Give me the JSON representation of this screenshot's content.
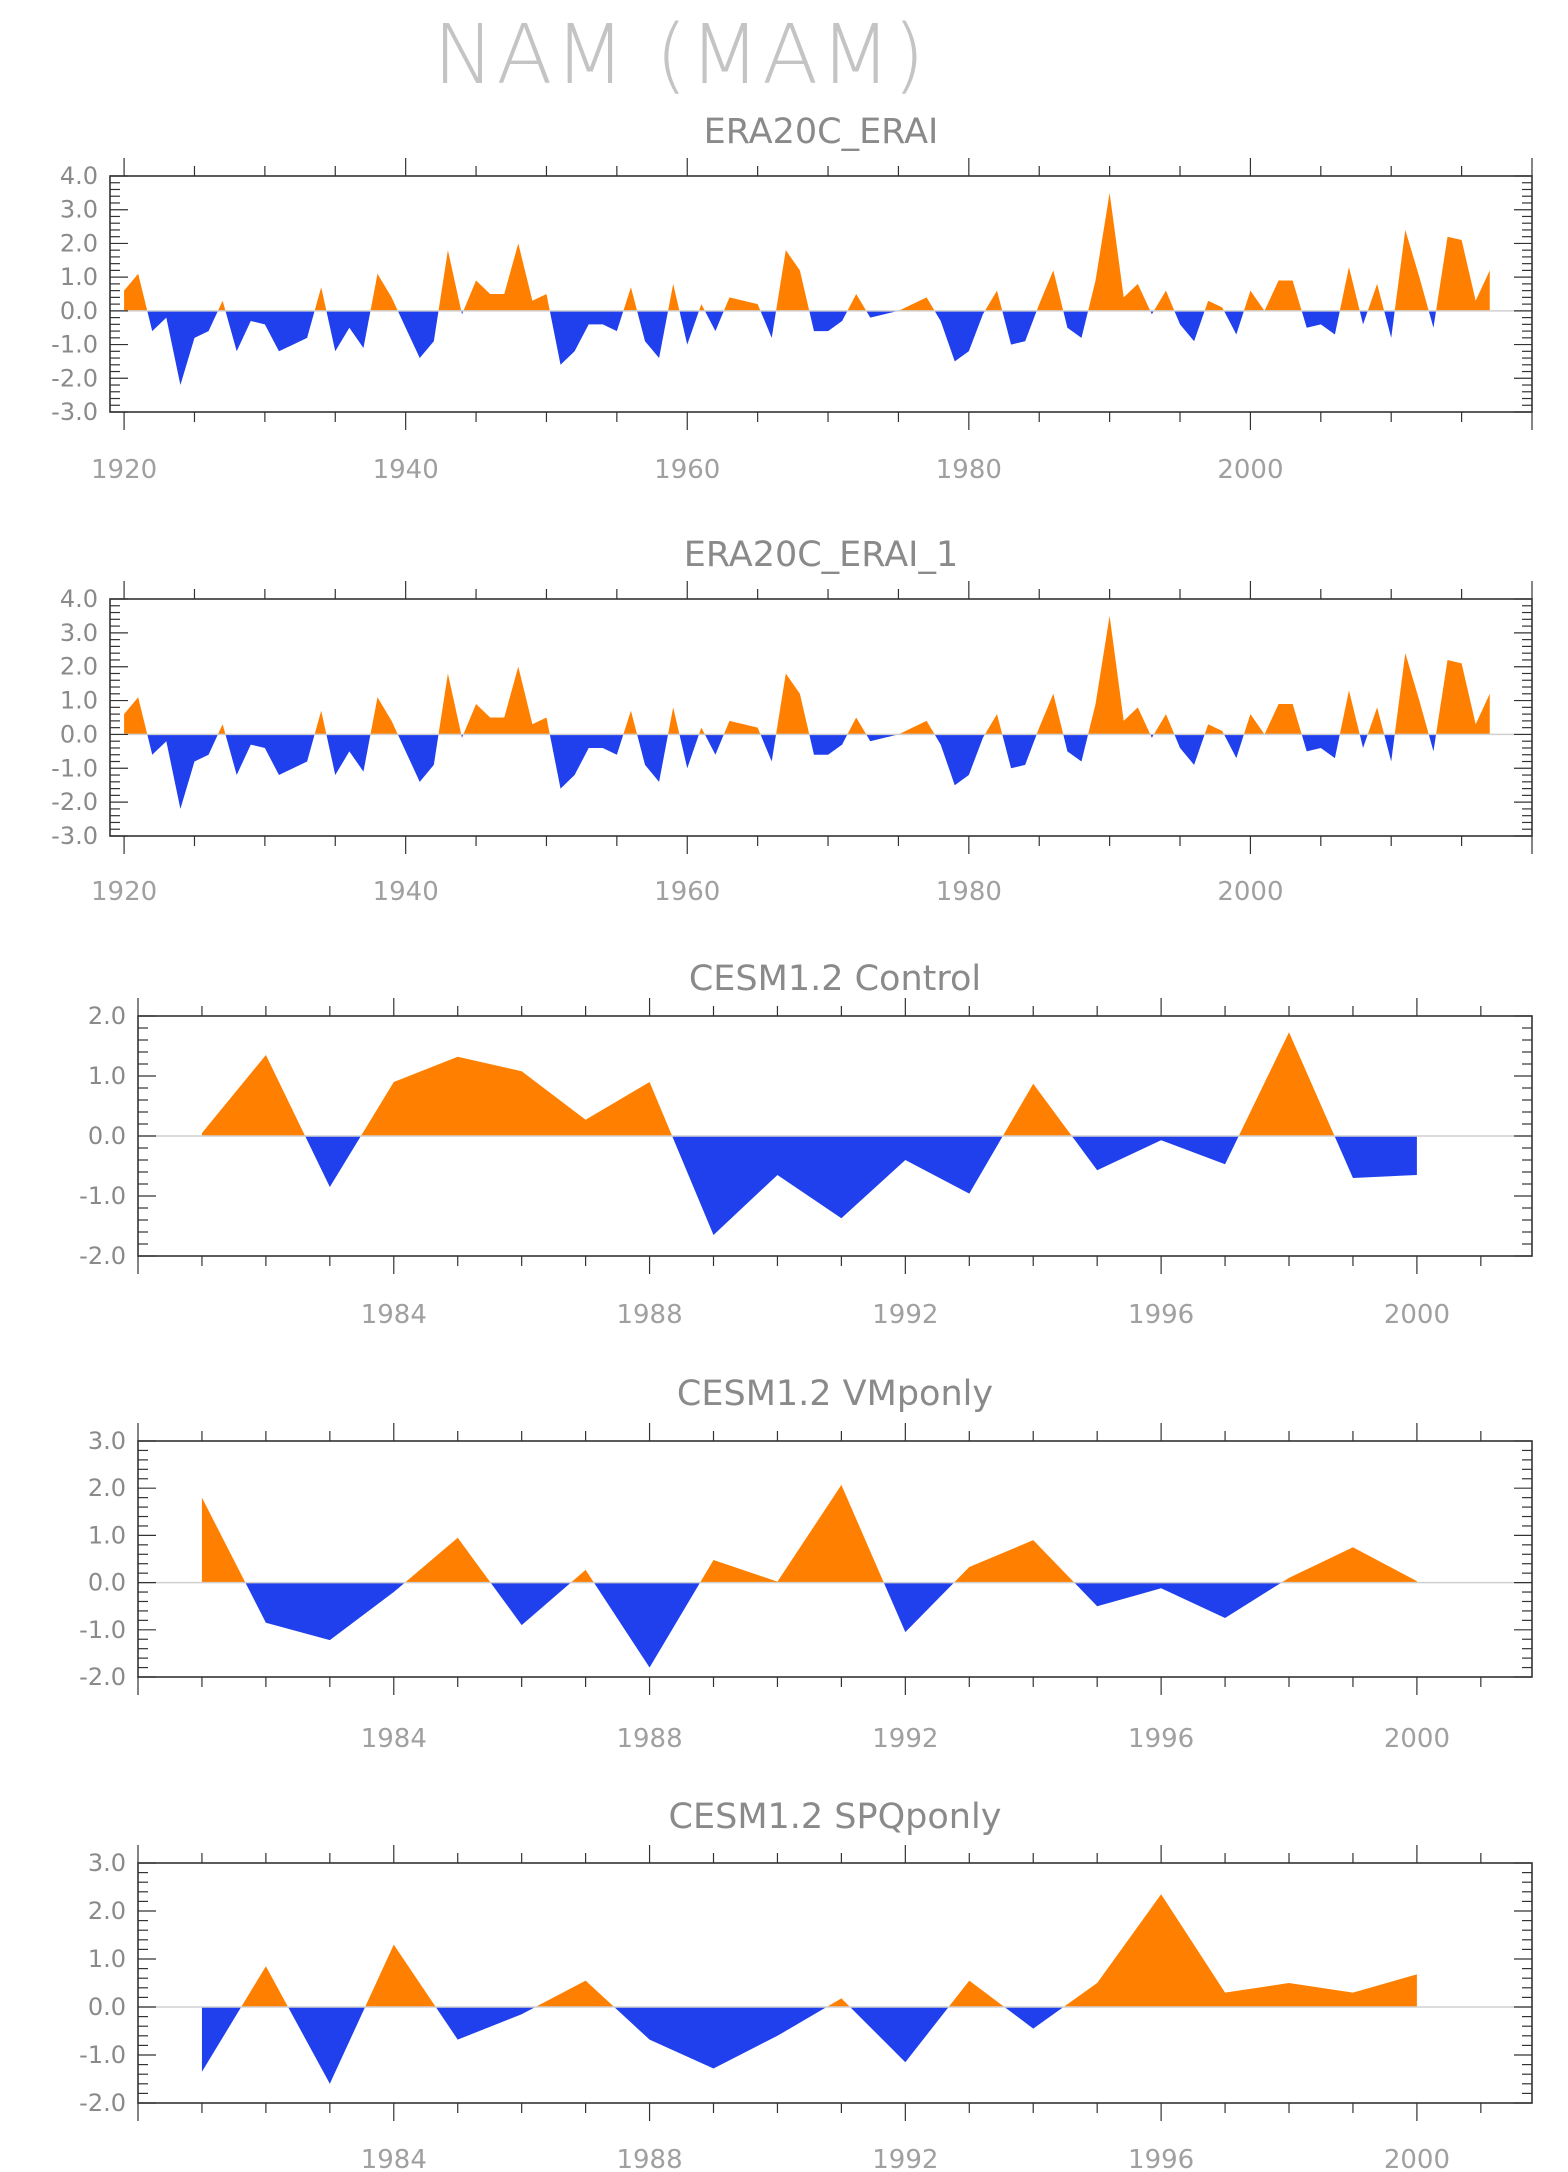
{
  "title": "NAM (MAM)",
  "colors": {
    "positive": "#ff8000",
    "negative": "#2040ee",
    "axis": "#333333",
    "text": "#8a8a8a"
  },
  "chart_data": [
    {
      "type": "area",
      "title": "ERA20C_ERAI",
      "xlim": [
        1919,
        2020
      ],
      "ylim": [
        -3.0,
        4.0
      ],
      "yticks": [
        "4.0",
        "3.0",
        "2.0",
        "1.0",
        "0.0",
        "-1.0",
        "-2.0",
        "-3.0"
      ],
      "xticks": [
        "1920",
        "1940",
        "1960",
        "1980",
        "2000"
      ],
      "x_start": 1920,
      "values": [
        0.6,
        1.1,
        -0.6,
        -0.2,
        -2.2,
        -0.8,
        -0.6,
        0.3,
        -1.2,
        -0.3,
        -0.4,
        -1.2,
        -1.0,
        -0.8,
        0.7,
        -1.2,
        -0.5,
        -1.1,
        1.1,
        0.4,
        -0.5,
        -1.4,
        -0.9,
        1.8,
        -0.1,
        0.9,
        0.5,
        0.5,
        2.0,
        0.3,
        0.5,
        -1.6,
        -1.2,
        -0.4,
        -0.4,
        -0.6,
        0.7,
        -0.9,
        -1.4,
        0.8,
        -1.0,
        0.2,
        -0.6,
        0.4,
        0.3,
        0.2,
        -0.8,
        1.8,
        1.2,
        -0.6,
        -0.6,
        -0.3,
        0.5,
        -0.2,
        -0.1,
        0.0,
        0.2,
        0.4,
        -0.3,
        -1.5,
        -1.2,
        -0.1,
        0.6,
        -1.0,
        -0.9,
        0.2,
        1.2,
        -0.5,
        -0.8,
        0.9,
        3.5,
        0.4,
        0.8,
        -0.1,
        0.6,
        -0.4,
        -0.9,
        0.3,
        0.1,
        -0.7,
        0.6,
        0.0,
        0.9,
        0.9,
        -0.5,
        -0.4,
        -0.7,
        1.3,
        -0.4,
        0.8,
        -0.8,
        2.4,
        1.0,
        -0.5,
        2.2,
        2.1,
        0.3,
        1.2
      ]
    },
    {
      "type": "area",
      "title": "ERA20C_ERAI_1",
      "xlim": [
        1919,
        2020
      ],
      "ylim": [
        -3.0,
        4.0
      ],
      "yticks": [
        "4.0",
        "3.0",
        "2.0",
        "1.0",
        "0.0",
        "-1.0",
        "-2.0",
        "-3.0"
      ],
      "xticks": [
        "1920",
        "1940",
        "1960",
        "1980",
        "2000"
      ],
      "x_start": 1920,
      "values": [
        0.6,
        1.1,
        -0.6,
        -0.2,
        -2.2,
        -0.8,
        -0.6,
        0.3,
        -1.2,
        -0.3,
        -0.4,
        -1.2,
        -1.0,
        -0.8,
        0.7,
        -1.2,
        -0.5,
        -1.1,
        1.1,
        0.4,
        -0.5,
        -1.4,
        -0.9,
        1.8,
        -0.1,
        0.9,
        0.5,
        0.5,
        2.0,
        0.3,
        0.5,
        -1.6,
        -1.2,
        -0.4,
        -0.4,
        -0.6,
        0.7,
        -0.9,
        -1.4,
        0.8,
        -1.0,
        0.2,
        -0.6,
        0.4,
        0.3,
        0.2,
        -0.8,
        1.8,
        1.2,
        -0.6,
        -0.6,
        -0.3,
        0.5,
        -0.2,
        -0.1,
        0.0,
        0.2,
        0.4,
        -0.3,
        -1.5,
        -1.2,
        -0.1,
        0.6,
        -1.0,
        -0.9,
        0.2,
        1.2,
        -0.5,
        -0.8,
        0.9,
        3.5,
        0.4,
        0.8,
        -0.1,
        0.6,
        -0.4,
        -0.9,
        0.3,
        0.1,
        -0.7,
        0.6,
        0.0,
        0.9,
        0.9,
        -0.5,
        -0.4,
        -0.7,
        1.3,
        -0.4,
        0.8,
        -0.8,
        2.4,
        1.0,
        -0.5,
        2.2,
        2.1,
        0.3,
        1.2
      ]
    },
    {
      "type": "area",
      "title": "CESM1.2 Control",
      "xlim": [
        1980,
        2001.8
      ],
      "ylim": [
        -2.0,
        2.0
      ],
      "yticks": [
        "2.0",
        "1.0",
        "0.0",
        "-1.0",
        "-2.0"
      ],
      "xticks": [
        "1984",
        "1988",
        "1992",
        "1996",
        "2000"
      ],
      "x_start": 1981,
      "values": [
        0.05,
        1.35,
        -0.85,
        0.9,
        1.32,
        1.08,
        0.27,
        0.9,
        -1.65,
        -0.65,
        -1.37,
        -0.4,
        -0.96,
        0.87,
        -0.57,
        -0.07,
        -0.47,
        1.73,
        -0.7,
        -0.65
      ]
    },
    {
      "type": "area",
      "title": "CESM1.2 VMponly",
      "xlim": [
        1980,
        2001.8
      ],
      "ylim": [
        -2.0,
        3.0
      ],
      "yticks": [
        "3.0",
        "2.0",
        "1.0",
        "0.0",
        "-1.0",
        "-2.0"
      ],
      "xticks": [
        "1984",
        "1988",
        "1992",
        "1996",
        "2000"
      ],
      "x_start": 1981,
      "values": [
        1.8,
        -0.85,
        -1.22,
        -0.2,
        0.95,
        -0.9,
        0.27,
        -1.8,
        0.48,
        0.02,
        2.07,
        -1.05,
        0.33,
        0.9,
        -0.5,
        -0.12,
        -0.75,
        0.1,
        0.75,
        0.03
      ]
    },
    {
      "type": "area",
      "title": "CESM1.2 SPQponly",
      "xlim": [
        1980,
        2001.8
      ],
      "ylim": [
        -2.0,
        3.0
      ],
      "yticks": [
        "3.0",
        "2.0",
        "1.0",
        "0.0",
        "-1.0",
        "-2.0"
      ],
      "xticks": [
        "1984",
        "1988",
        "1992",
        "1996",
        "2000"
      ],
      "x_start": 1981,
      "values": [
        -1.35,
        0.85,
        -1.6,
        1.3,
        -0.68,
        -0.15,
        0.55,
        -0.68,
        -1.28,
        -0.6,
        0.18,
        -1.15,
        0.55,
        -0.45,
        0.5,
        2.35,
        0.3,
        0.5,
        0.3,
        0.68
      ]
    }
  ]
}
